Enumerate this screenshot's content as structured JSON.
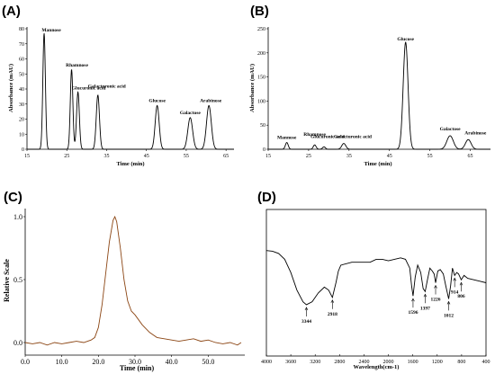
{
  "panels": {
    "A": "(A)",
    "B": "(B)",
    "C": "(C)",
    "D": "(D)"
  },
  "chart_data": [
    {
      "id": "A",
      "type": "line",
      "xlabel": "Time (min)",
      "ylabel": "Absorbance (mAU)",
      "xlim": [
        15,
        67
      ],
      "ylim": [
        0,
        80
      ],
      "x_ticks": [
        15,
        25,
        35,
        45,
        55,
        65
      ],
      "y_ticks": [
        0,
        10,
        20,
        30,
        40,
        50,
        60,
        70,
        80
      ],
      "line_color": "#000000",
      "peaks": [
        {
          "label": "Mannose",
          "x": 19.3,
          "y": 77,
          "w": 0.32
        },
        {
          "label": "Rhamnose",
          "x": 26.2,
          "y": 53,
          "w": 0.32
        },
        {
          "label": "Glucuronic acid",
          "x": 27.8,
          "y": 38,
          "w": 0.35
        },
        {
          "label": "Galacturonic acid",
          "x": 32.8,
          "y": 36,
          "w": 0.4
        },
        {
          "label": "Glucose",
          "x": 47.7,
          "y": 29,
          "w": 0.5
        },
        {
          "label": "Galactose",
          "x": 56.0,
          "y": 21,
          "w": 0.6
        },
        {
          "label": "Arabinose",
          "x": 60.7,
          "y": 29,
          "w": 0.6
        }
      ]
    },
    {
      "id": "B",
      "type": "line",
      "xlabel": "Time (min)",
      "ylabel": "Absorbance (mAU)",
      "xlim": [
        15,
        70
      ],
      "ylim": [
        0,
        250
      ],
      "x_ticks": [
        15,
        25,
        35,
        45,
        55,
        65
      ],
      "y_ticks": [
        0,
        50,
        100,
        150,
        200,
        250
      ],
      "line_color": "#000000",
      "peaks": [
        {
          "label": "Mannose",
          "x": 19.6,
          "y": 14,
          "w": 0.35
        },
        {
          "label": "Rhamnose",
          "x": 26.5,
          "y": 9,
          "w": 0.35
        },
        {
          "label": "Glucuronic acid",
          "x": 28.8,
          "y": 5,
          "w": 0.35
        },
        {
          "label": "Galacturonic acid",
          "x": 33.7,
          "y": 12,
          "w": 0.5
        },
        {
          "label": "Glucose",
          "x": 49.0,
          "y": 222,
          "w": 0.6
        },
        {
          "label": "Galactose",
          "x": 60.0,
          "y": 28,
          "w": 0.8
        },
        {
          "label": "Arabinose",
          "x": 64.5,
          "y": 20,
          "w": 0.7
        }
      ]
    },
    {
      "id": "C",
      "type": "line",
      "xlabel": "Time (min)",
      "ylabel": "Relative Scale",
      "xlim": [
        0,
        60
      ],
      "ylim": [
        -0.05,
        1.0
      ],
      "x_ticks": [
        0.0,
        10.0,
        20.0,
        30.0,
        40.0,
        50.0
      ],
      "y_ticks": [
        0.0,
        0.5,
        1.0
      ],
      "line_color": "#8b4513",
      "x": [
        0,
        2,
        4,
        6,
        8,
        10,
        12,
        14,
        16,
        18,
        19,
        20,
        21,
        22,
        23,
        24,
        24.5,
        25,
        26,
        27,
        28,
        29,
        30,
        31,
        32,
        34,
        36,
        38,
        40,
        42,
        44,
        46,
        48,
        50,
        52,
        54,
        56,
        58,
        59
      ],
      "y": [
        0.0,
        -0.01,
        0.0,
        -0.02,
        0.0,
        -0.01,
        0.0,
        0.01,
        0.0,
        0.02,
        0.04,
        0.12,
        0.3,
        0.55,
        0.8,
        0.97,
        1.0,
        0.96,
        0.75,
        0.5,
        0.33,
        0.25,
        0.22,
        0.18,
        0.14,
        0.08,
        0.04,
        0.03,
        0.02,
        0.01,
        0.02,
        0.03,
        0.01,
        0.02,
        0.0,
        -0.01,
        0.0,
        -0.02,
        0.0
      ]
    },
    {
      "id": "D",
      "type": "line",
      "xlabel": "Wavelength(cm-1)",
      "ylabel": "",
      "xlim": [
        4000,
        400
      ],
      "ylim": [
        0,
        100
      ],
      "x_ticks": [
        4000,
        3600,
        3200,
        2800,
        2400,
        2000,
        1600,
        1200,
        800,
        400
      ],
      "line_color": "#000000",
      "x": [
        4000,
        3900,
        3800,
        3700,
        3600,
        3500,
        3400,
        3344,
        3250,
        3150,
        3050,
        2980,
        2918,
        2860,
        2820,
        2780,
        2600,
        2400,
        2300,
        2200,
        2100,
        2000,
        1900,
        1800,
        1720,
        1650,
        1620,
        1596,
        1560,
        1520,
        1470,
        1430,
        1397,
        1360,
        1320,
        1280,
        1250,
        1226,
        1190,
        1150,
        1100,
        1060,
        1012,
        980,
        950,
        914,
        880,
        850,
        806,
        760,
        700,
        600,
        500,
        400
      ],
      "y": [
        72,
        71.5,
        70,
        66,
        57,
        45,
        37,
        35,
        37,
        43,
        47,
        45,
        40,
        50,
        58,
        62,
        64,
        64,
        64,
        66,
        66,
        65,
        66,
        67,
        66,
        60,
        48,
        41,
        54,
        62,
        57,
        46,
        44,
        52,
        60,
        58,
        56,
        50,
        58,
        59,
        56,
        48,
        39,
        48,
        60,
        55,
        57,
        56,
        52,
        55,
        53,
        52,
        51,
        50
      ],
      "annotations": [
        {
          "label": "3344",
          "x": 3344,
          "y": 35
        },
        {
          "label": "2918",
          "x": 2918,
          "y": 40
        },
        {
          "label": "1596",
          "x": 1596,
          "y": 41
        },
        {
          "label": "1397",
          "x": 1397,
          "y": 44
        },
        {
          "label": "1226",
          "x": 1226,
          "y": 50
        },
        {
          "label": "1012",
          "x": 1012,
          "y": 39
        },
        {
          "label": "914",
          "x": 914,
          "y": 55
        },
        {
          "label": "806",
          "x": 806,
          "y": 52
        }
      ]
    }
  ]
}
